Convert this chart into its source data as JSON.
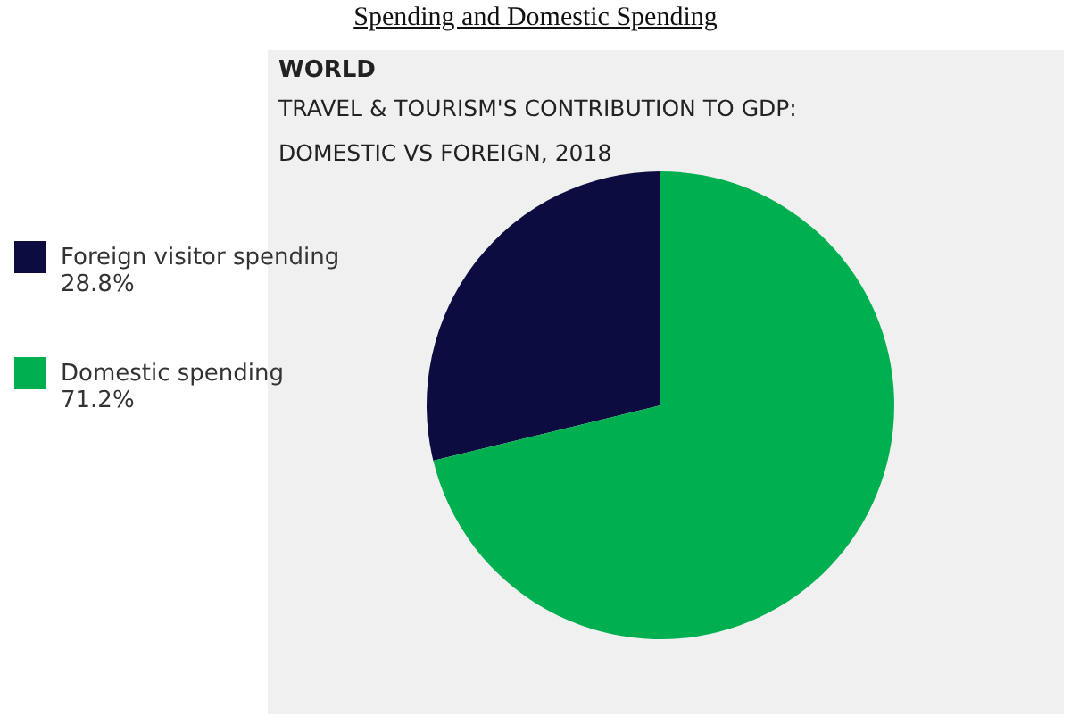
{
  "chart_data": {
    "type": "pie",
    "title": "WORLD",
    "subtitle": "TRAVEL & TOURISM'S CONTRIBUTION TO GDP: DOMESTIC VS FOREIGN, 2018",
    "annotations": [
      "Spending and Domestic Spending"
    ],
    "categories": [
      "Foreign visitor spending",
      "Domestic spending"
    ],
    "values": [
      28.8,
      71.2
    ],
    "colors": [
      "#0c0c40",
      "#00b050"
    ],
    "value_labels": [
      "28.8%",
      "71.2%"
    ],
    "legend": "left"
  }
}
